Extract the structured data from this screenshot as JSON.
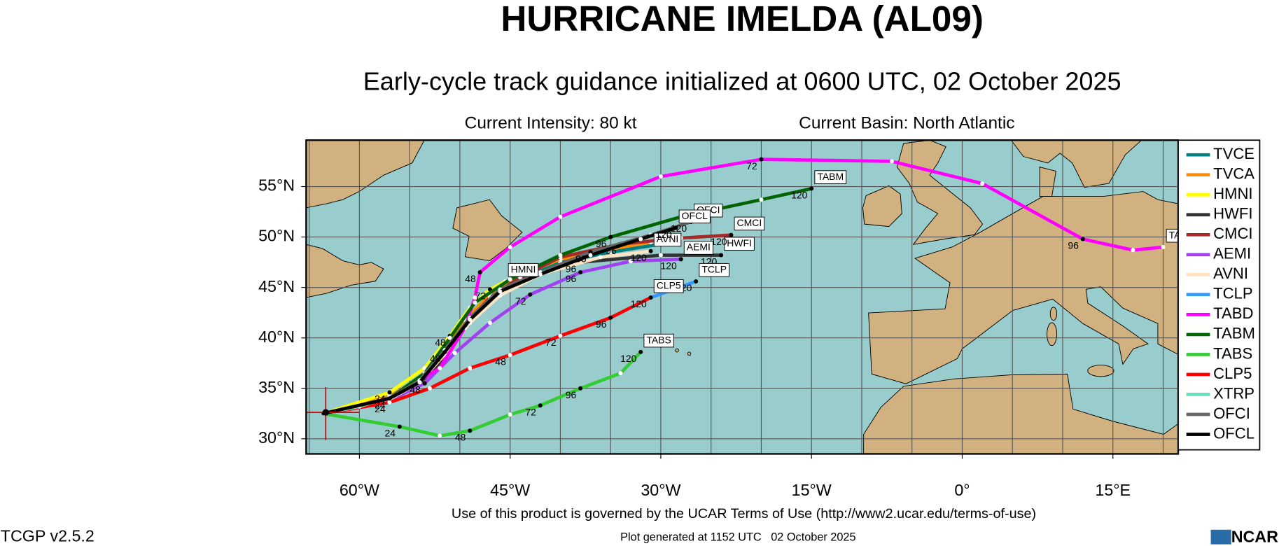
{
  "header": {
    "title": "HURRICANE IMELDA (AL09)",
    "subtitle": "Early-cycle track guidance initialized at 0600 UTC, 02 October 2025",
    "intensity": "Current Intensity: 80 kt",
    "basin": "Current Basin: North Atlantic"
  },
  "map": {
    "xlim": [
      -65.3,
      21.5
    ],
    "ylim": [
      28.5,
      59.6
    ],
    "xticks": [
      {
        "value": -60,
        "label": "60°W"
      },
      {
        "value": -45,
        "label": "45°W"
      },
      {
        "value": -30,
        "label": "30°W"
      },
      {
        "value": -15,
        "label": "15°W"
      },
      {
        "value": 0,
        "label": "0°"
      },
      {
        "value": 15,
        "label": "15°E"
      }
    ],
    "yticks": [
      {
        "value": 30,
        "label": "30°N"
      },
      {
        "value": 35,
        "label": "35°N"
      },
      {
        "value": 40,
        "label": "40°N"
      },
      {
        "value": 45,
        "label": "45°N"
      },
      {
        "value": 50,
        "label": "50°N"
      },
      {
        "value": 55,
        "label": "55°N"
      }
    ],
    "xgrid": [
      -65,
      -60,
      -55,
      -50,
      -45,
      -40,
      -35,
      -30,
      -25,
      -20,
      -15,
      -10,
      -5,
      0,
      5,
      10,
      15,
      20
    ],
    "tracks": [
      {
        "name": "TVCE",
        "color": "#008080",
        "lon": [
          -63.6,
          -57,
          -54,
          -51.5,
          -49.5,
          -47,
          -44,
          -40,
          -35,
          -30
        ],
        "lat": [
          32.5,
          34,
          35.8,
          38.5,
          41.5,
          44,
          46,
          47.5,
          48.5,
          49.3
        ],
        "point_labels": [
          null,
          null,
          null,
          null,
          null,
          null,
          null,
          null,
          null,
          null
        ]
      },
      {
        "name": "TVCA",
        "color": "#ff8c00",
        "lon": [
          -63.6,
          -57,
          -54,
          -51.5,
          -49.5,
          -47,
          -44,
          -40,
          -35,
          -31
        ],
        "lat": [
          32.5,
          34.2,
          36,
          38.8,
          41.8,
          44.3,
          46.2,
          47.8,
          48.8,
          49.5
        ],
        "point_labels": [
          null,
          null,
          null,
          null,
          null,
          null,
          null,
          null,
          null,
          null
        ]
      },
      {
        "name": "HMNI",
        "color": "#ffff00",
        "lon": [
          -63.6,
          -57,
          -53.5,
          -51,
          -49,
          -47,
          -45.5
        ],
        "lat": [
          32.5,
          34.6,
          37,
          40.2,
          43,
          44.8,
          45.6
        ],
        "point_labels": [
          null,
          "24",
          null,
          "48",
          null,
          "72",
          null
        ],
        "tag": "HMNI"
      },
      {
        "name": "HWFI",
        "color": "#333333",
        "lon": [
          -63.6,
          -57,
          -54,
          -51.5,
          -49.5,
          -47,
          -44,
          -38,
          -30,
          -24
        ],
        "lat": [
          32.5,
          34,
          35.5,
          38,
          41,
          44,
          46,
          47.5,
          48.2,
          48.2
        ],
        "point_labels": [
          null,
          null,
          null,
          null,
          null,
          null,
          null,
          "96",
          null,
          "120"
        ],
        "tag": "HWFI"
      },
      {
        "name": "CMCI",
        "color": "#a52a2a",
        "lon": [
          -63.6,
          -57,
          -54,
          -51.5,
          -49.5,
          -47,
          -44,
          -40,
          -34,
          -28,
          -23
        ],
        "lat": [
          32.5,
          34,
          35.7,
          38.3,
          41.3,
          44,
          46,
          48,
          49.3,
          49.9,
          50.2
        ],
        "point_labels": [
          null,
          null,
          null,
          null,
          null,
          null,
          null,
          null,
          "96",
          null,
          "120"
        ],
        "tag": "CMCI"
      },
      {
        "name": "AEMI",
        "color": "#a040f0",
        "lon": [
          -63.6,
          -57,
          -53.5,
          -50.5,
          -47,
          -43,
          -38,
          -33,
          -28
        ],
        "lat": [
          32.5,
          33.8,
          35.5,
          38.5,
          41.5,
          44.3,
          46.5,
          47.6,
          47.8
        ],
        "point_labels": [
          null,
          null,
          "48",
          null,
          null,
          "72",
          "96",
          null,
          "120"
        ],
        "tag": "AEMI"
      },
      {
        "name": "AVNI",
        "color": "#ffe4c4",
        "lon": [
          -63.6,
          -57,
          -54,
          -51.5,
          -49,
          -46,
          -42,
          -36,
          -31
        ],
        "lat": [
          32.5,
          33.9,
          35.6,
          38.4,
          41.5,
          44.2,
          46.3,
          48,
          48.6
        ],
        "point_labels": [
          null,
          null,
          null,
          null,
          null,
          null,
          null,
          null,
          "120"
        ],
        "tag": "AVNI"
      },
      {
        "name": "TCLP",
        "color": "#3399ff",
        "lon": [
          -63.6,
          -57,
          -53,
          -49,
          -45,
          -40,
          -35,
          -31,
          -26.5
        ],
        "lat": [
          32.5,
          33.6,
          35,
          37,
          38.3,
          40.2,
          42,
          44,
          45.6
        ],
        "point_labels": [
          null,
          "24",
          null,
          null,
          "48",
          "72",
          null,
          null,
          "120"
        ],
        "tag": "TCLP"
      },
      {
        "name": "TABD",
        "color": "#ff00ff",
        "lon": [
          -63.6,
          -57,
          -52,
          -49.5,
          -48.5,
          -48,
          -45,
          -40,
          -30,
          -20,
          -7,
          2,
          12,
          17,
          20
        ],
        "lat": [
          32.5,
          34,
          37,
          41,
          44,
          46.5,
          49,
          52,
          56,
          57.7,
          57.5,
          55.3,
          49.8,
          48.7,
          49
        ],
        "point_labels": [
          null,
          null,
          null,
          null,
          null,
          "48",
          null,
          null,
          null,
          "72",
          null,
          null,
          "96",
          null,
          null
        ],
        "tag": "TABD"
      },
      {
        "name": "TABM",
        "color": "#006400",
        "lon": [
          -63.6,
          -57,
          -53.5,
          -51,
          -48.5,
          -45,
          -40,
          -35,
          -28,
          -20,
          -15
        ],
        "lat": [
          32.5,
          34,
          36.5,
          40,
          43.5,
          45.8,
          48.2,
          50,
          52,
          53.7,
          54.8
        ],
        "point_labels": [
          null,
          null,
          null,
          null,
          null,
          null,
          null,
          "96",
          null,
          null,
          "120"
        ],
        "tag": "TABM"
      },
      {
        "name": "TABS",
        "color": "#33cc33",
        "lon": [
          -63.6,
          -56,
          -52,
          -49,
          -45,
          -42,
          -38,
          -34,
          -32
        ],
        "lat": [
          32.5,
          31.2,
          30.3,
          30.8,
          32.4,
          33.3,
          35,
          36.5,
          38.6
        ],
        "point_labels": [
          null,
          "24",
          null,
          "48",
          null,
          "72",
          "96",
          null,
          "120"
        ],
        "tag": "TABS"
      },
      {
        "name": "CLP5",
        "color": "#ff0000",
        "lon": [
          -63.6,
          -57,
          -53,
          -49,
          -45,
          -40,
          -35,
          -31
        ],
        "lat": [
          32.5,
          33.6,
          35,
          37,
          38.3,
          40.2,
          42,
          44
        ],
        "point_labels": [
          null,
          null,
          null,
          null,
          null,
          null,
          "96",
          "120"
        ],
        "tag": "CLP5"
      },
      {
        "name": "XTRP",
        "color": "#66ddbb",
        "lon": [
          -63.6,
          -60,
          -58
        ],
        "lat": [
          32.5,
          33.2,
          33.8
        ],
        "point_labels": [
          null,
          null,
          null
        ]
      },
      {
        "name": "OFCI",
        "color": "#666666",
        "lon": [
          -63.6,
          -57,
          -54,
          -51.5,
          -49,
          -46,
          -42,
          -37,
          -31,
          -27
        ],
        "lat": [
          32.5,
          34,
          35.8,
          38.8,
          42,
          44.8,
          46.5,
          48.5,
          50.2,
          51.5
        ],
        "point_labels": [
          null,
          null,
          null,
          null,
          null,
          null,
          null,
          "96",
          null,
          "120"
        ],
        "tag": "OFCI"
      },
      {
        "name": "OFCL",
        "color": "#000000",
        "lon": [
          -63.6,
          -57,
          -54,
          -51.5,
          -49,
          -46,
          -42,
          -37,
          -32,
          -28.5
        ],
        "lat": [
          32.5,
          34,
          35.6,
          38.6,
          41.8,
          44.6,
          46.3,
          48.2,
          49.8,
          50.9
        ],
        "point_labels": [
          null,
          "24",
          null,
          "48",
          null,
          null,
          null,
          null,
          null,
          "120"
        ],
        "tag": "OFCL"
      }
    ]
  },
  "footer": {
    "terms": "Use of this product is governed by the UCAR Terms of Use (http://www2.ucar.edu/terms-of-use)",
    "version": "TCGP v2.5.2",
    "generated": "Plot generated at 1152 UTC   02 October 2025",
    "logo": "NCAR"
  }
}
